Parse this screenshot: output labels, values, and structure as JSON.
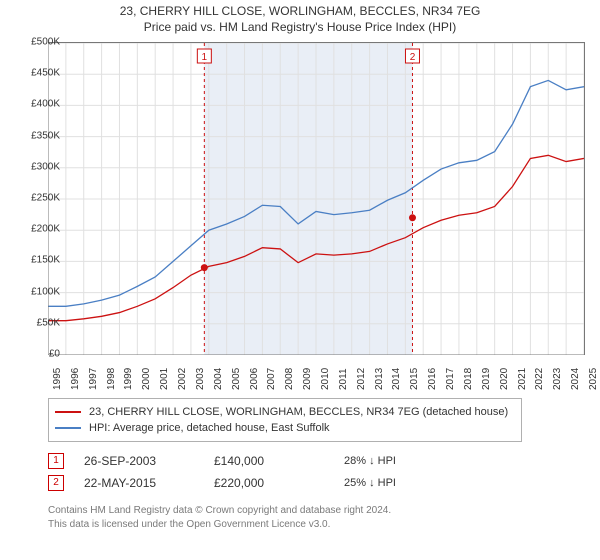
{
  "title1": "23, CHERRY HILL CLOSE, WORLINGHAM, BECCLES, NR34 7EG",
  "title2": "Price paid vs. HM Land Registry's House Price Index (HPI)",
  "chart": {
    "type": "line",
    "background_color": "#ffffff",
    "grid_color": "#e0e0e0",
    "shade_color": "#e9eef6",
    "axis_color": "#777777",
    "tick_fontsize": 10,
    "x_years": [
      1995,
      1996,
      1997,
      1998,
      1999,
      2000,
      2001,
      2002,
      2003,
      2004,
      2005,
      2006,
      2007,
      2008,
      2009,
      2010,
      2011,
      2012,
      2013,
      2014,
      2015,
      2016,
      2017,
      2018,
      2019,
      2020,
      2021,
      2022,
      2023,
      2024,
      2025
    ],
    "y_min": 0,
    "y_max": 500000,
    "y_tick_step": 50000,
    "y_tick_labels": [
      "£0",
      "£50K",
      "£100K",
      "£150K",
      "£200K",
      "£250K",
      "£300K",
      "£350K",
      "£400K",
      "£450K",
      "£500K"
    ],
    "shaded_from": 2003.75,
    "shaded_to": 2015.4,
    "series": [
      {
        "key": "hpi",
        "color": "#4a7fc4",
        "width": 1.3,
        "values": [
          78,
          78,
          82,
          88,
          96,
          110,
          125,
          150,
          175,
          200,
          210,
          222,
          240,
          238,
          210,
          230,
          225,
          228,
          232,
          248,
          260,
          280,
          298,
          308,
          312,
          326,
          370,
          430,
          440,
          425,
          430
        ]
      },
      {
        "key": "property",
        "color": "#cc1111",
        "width": 1.3,
        "values": [
          55,
          55,
          58,
          62,
          68,
          78,
          90,
          108,
          128,
          142,
          148,
          158,
          172,
          170,
          148,
          162,
          160,
          162,
          166,
          178,
          188,
          204,
          216,
          224,
          228,
          238,
          270,
          315,
          320,
          310,
          315
        ]
      }
    ],
    "sale_markers": [
      {
        "n": "1",
        "year": 2003.75,
        "price": 140000,
        "color": "#cc1111"
      },
      {
        "n": "2",
        "year": 2015.4,
        "price": 220000,
        "color": "#cc1111"
      }
    ]
  },
  "legend": {
    "rows": [
      {
        "color": "#cc1111",
        "label": "23, CHERRY HILL CLOSE, WORLINGHAM, BECCLES, NR34 7EG (detached house)"
      },
      {
        "color": "#4a7fc4",
        "label": "HPI: Average price, detached house, East Suffolk"
      }
    ]
  },
  "sales": [
    {
      "n": "1",
      "date": "26-SEP-2003",
      "price": "£140,000",
      "delta": "28% ↓ HPI"
    },
    {
      "n": "2",
      "date": "22-MAY-2015",
      "price": "£220,000",
      "delta": "25% ↓ HPI"
    }
  ],
  "attrib1": "Contains HM Land Registry data © Crown copyright and database right 2024.",
  "attrib2": "This data is licensed under the Open Government Licence v3.0."
}
